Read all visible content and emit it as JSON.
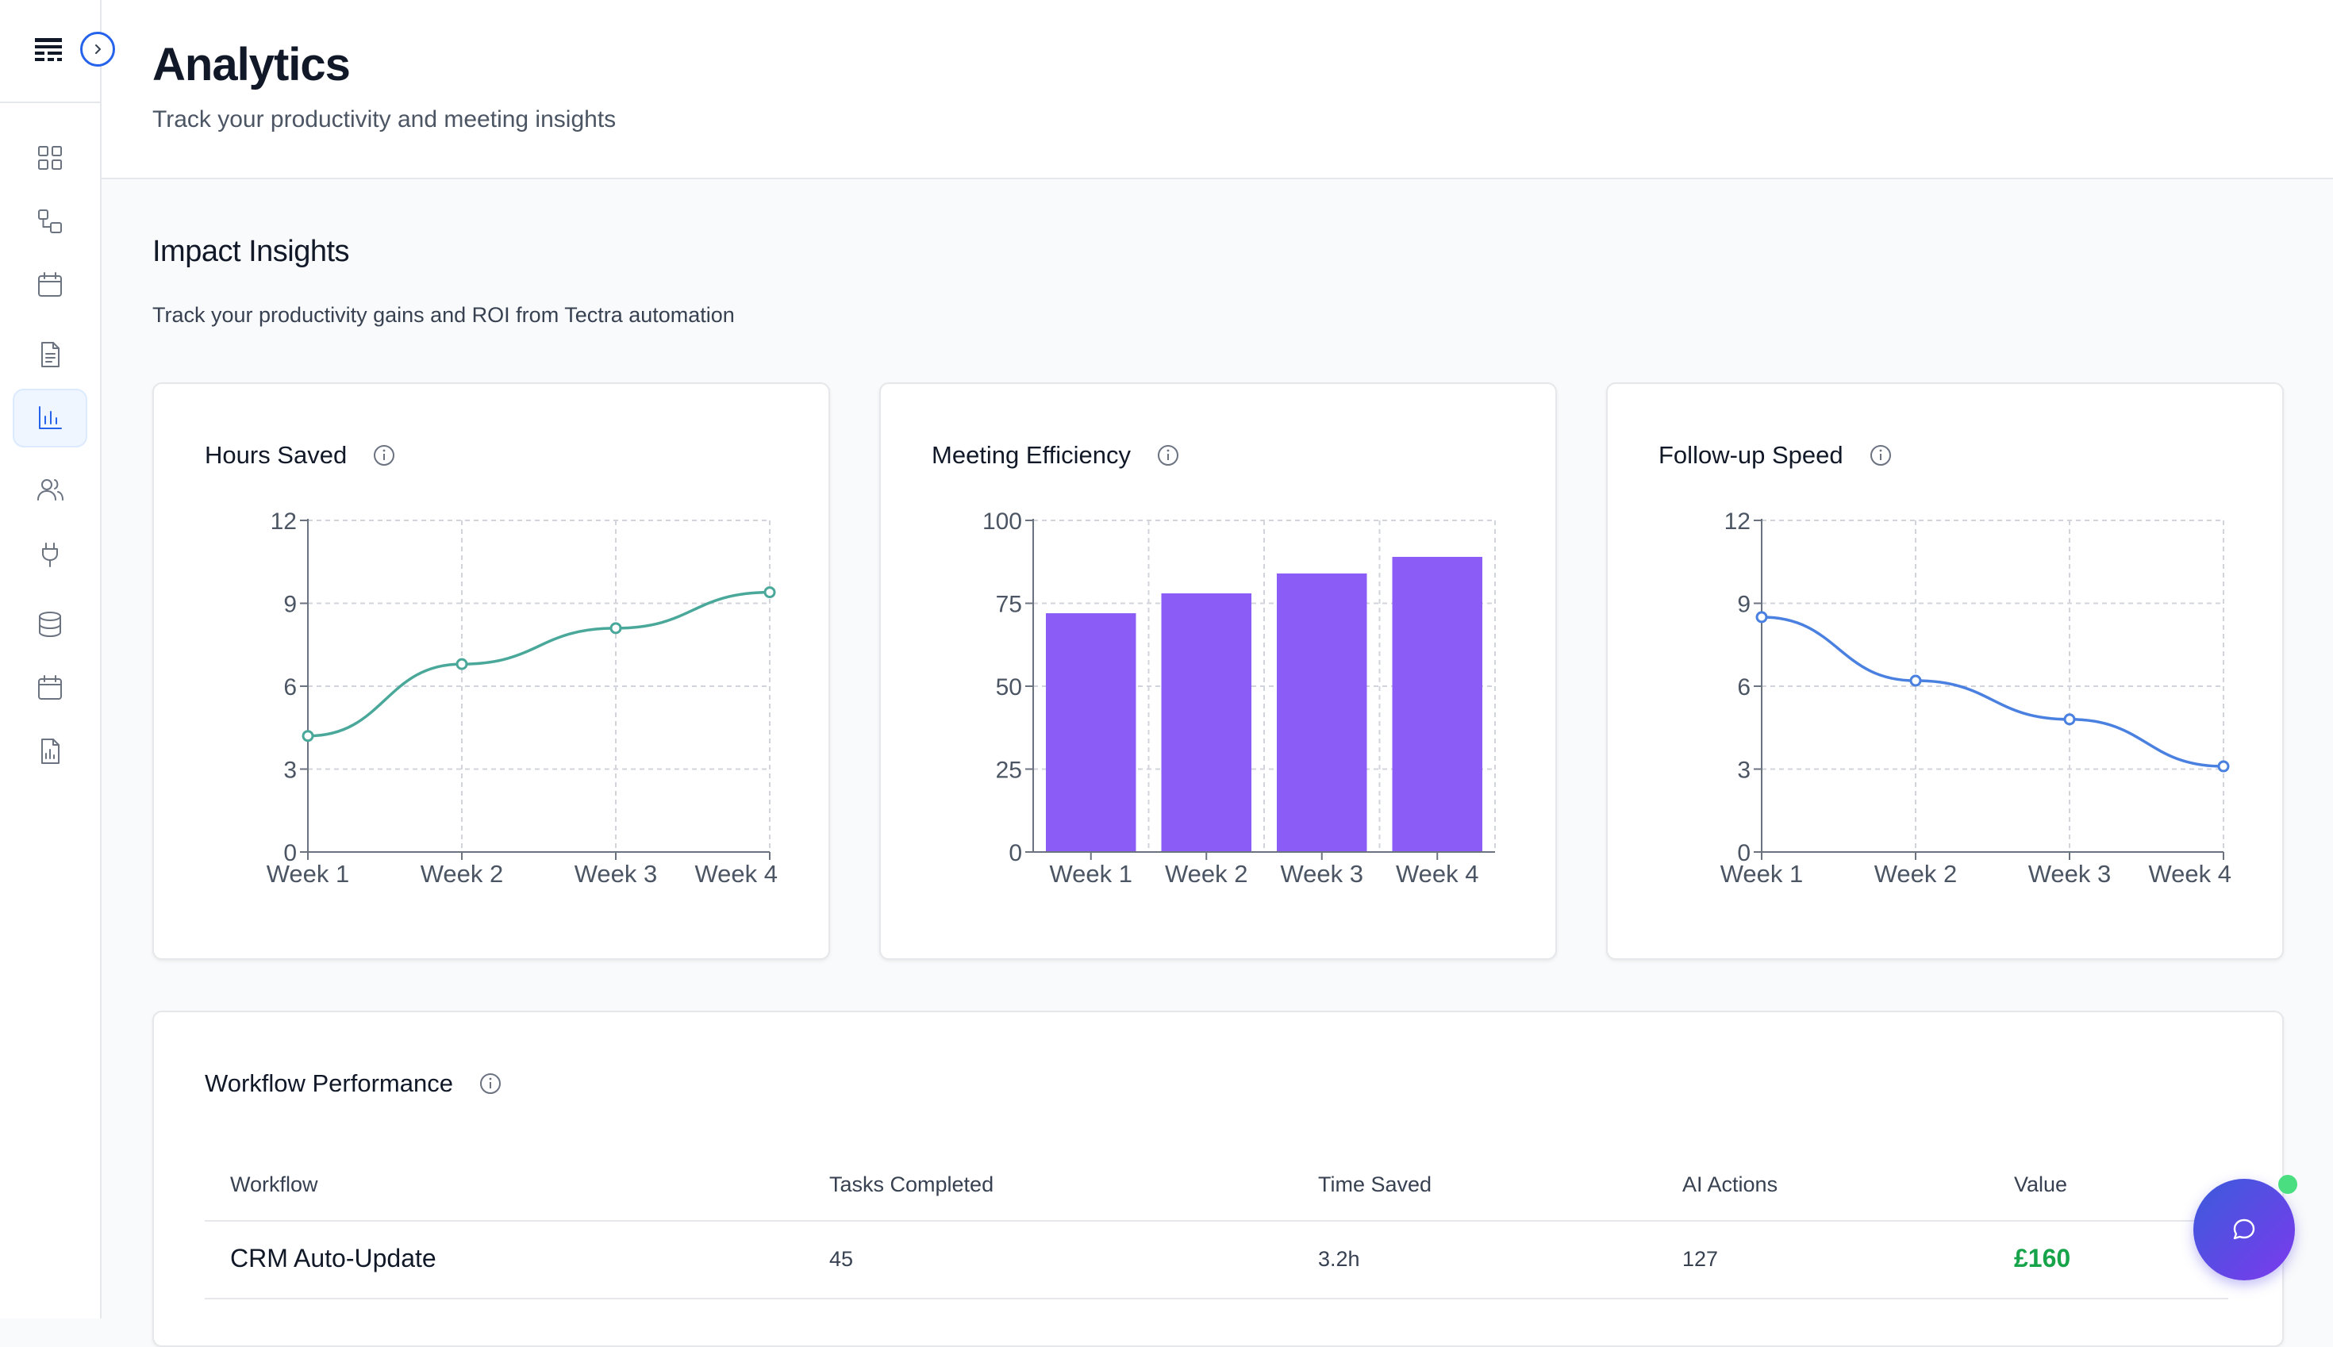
{
  "header": {
    "title": "Analytics",
    "subtitle": "Track your productivity and meeting insights"
  },
  "section": {
    "title": "Impact Insights",
    "subtitle": "Track your productivity gains and ROI from Tectra automation"
  },
  "sidebar": {
    "items": [
      {
        "icon": "dashboard-icon",
        "active": false
      },
      {
        "icon": "workflow-icon",
        "active": false
      },
      {
        "icon": "calendar-icon",
        "active": false
      },
      {
        "icon": "document-icon",
        "active": false
      },
      {
        "icon": "analytics-icon",
        "active": true
      },
      {
        "icon": "users-icon",
        "active": false
      },
      {
        "icon": "plug-icon",
        "active": false
      },
      {
        "icon": "database-icon",
        "active": false
      },
      {
        "icon": "calendar-icon",
        "active": false
      },
      {
        "icon": "report-icon",
        "active": false
      }
    ]
  },
  "colors": {
    "accent": "#2563eb",
    "hours_line": "#4aa89a",
    "efficiency_bar": "#8b5cf6",
    "followup_line": "#4a80e0",
    "value_green": "#16a34a"
  },
  "chart_data": [
    {
      "type": "line",
      "title": "Hours Saved",
      "categories": [
        "Week 1",
        "Week 2",
        "Week 3",
        "Week 4"
      ],
      "values": [
        4.2,
        6.8,
        8.1,
        9.4
      ],
      "ylim": [
        0,
        12
      ],
      "yticks": [
        0,
        3,
        6,
        9,
        12
      ],
      "grid": true
    },
    {
      "type": "bar",
      "title": "Meeting Efficiency",
      "categories": [
        "Week 1",
        "Week 2",
        "Week 3",
        "Week 4"
      ],
      "values": [
        72,
        78,
        84,
        89
      ],
      "ylim": [
        0,
        100
      ],
      "yticks": [
        0,
        25,
        50,
        75,
        100
      ],
      "grid": true
    },
    {
      "type": "line",
      "title": "Follow-up Speed",
      "categories": [
        "Week 1",
        "Week 2",
        "Week 3",
        "Week 4"
      ],
      "values": [
        8.5,
        6.2,
        4.8,
        3.1
      ],
      "ylim": [
        0,
        12
      ],
      "yticks": [
        0,
        3,
        6,
        9,
        12
      ],
      "grid": true
    }
  ],
  "workflow": {
    "title": "Workflow Performance",
    "columns": [
      "Workflow",
      "Tasks Completed",
      "Time Saved",
      "AI Actions",
      "Value"
    ],
    "rows": [
      {
        "workflow": "CRM Auto-Update",
        "tasks": "45",
        "time_saved": "3.2h",
        "ai_actions": "127",
        "value": "£160"
      }
    ]
  }
}
